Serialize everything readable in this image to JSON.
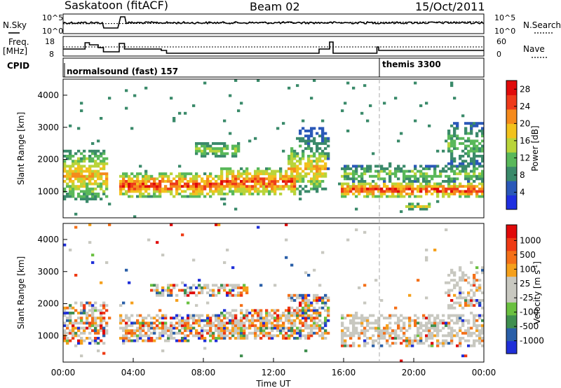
{
  "header": {
    "station": "Saskatoon (fitACF)",
    "beam": "Beam 02",
    "date": "15/Oct/2011"
  },
  "noise_panel": {
    "left_label": "N.Sky",
    "right_label": "N.Search",
    "left_ticks": [
      "10^5",
      "10^0"
    ],
    "right_ticks": [
      "10^5",
      "10^0"
    ]
  },
  "freq_panel": {
    "left_label_1": "Freq.",
    "left_label_2": "[MHz]",
    "right_label": "Nave",
    "left_ticks": [
      "18",
      "8"
    ],
    "right_ticks": [
      "60",
      "0"
    ]
  },
  "cpid_panel": {
    "label": "CPID",
    "modes": [
      {
        "name": "normalsound (fast) 157",
        "start_hour": 0
      },
      {
        "name": "themis 3300",
        "start_hour": 18.0
      }
    ]
  },
  "chart_data": [
    {
      "type": "heatmap",
      "name": "power",
      "ylabel": "Slant Range [km]",
      "xlim": [
        0,
        24
      ],
      "ylim": [
        180,
        4500
      ],
      "yticks": [
        1000,
        2000,
        3000,
        4000
      ],
      "colorbar": {
        "label": "Power [dB]",
        "ticks": [
          4,
          8,
          12,
          16,
          20,
          24,
          28
        ],
        "range": [
          0,
          30
        ],
        "colors": [
          "#1f2fe0",
          "#2a58b8",
          "#3a8a6a",
          "#59b85a",
          "#b9d43a",
          "#f2c21d",
          "#f58a1c",
          "#ee3a1a",
          "#e00a0a"
        ]
      },
      "echo_bands": [
        {
          "t0": 0.0,
          "t1": 2.6,
          "center": 1500,
          "half": 800,
          "level": 0.7
        },
        {
          "t0": 3.2,
          "t1": 9.0,
          "center": 1200,
          "half": 400,
          "level": 0.9
        },
        {
          "t0": 7.6,
          "t1": 10.0,
          "center": 2300,
          "half": 250,
          "level": 0.55
        },
        {
          "t0": 9.0,
          "t1": 13.2,
          "center": 1300,
          "half": 450,
          "level": 0.9
        },
        {
          "t0": 12.8,
          "t1": 15.0,
          "center": 1700,
          "half": 700,
          "level": 0.7
        },
        {
          "t0": 13.4,
          "t1": 15.2,
          "center": 2300,
          "half": 700,
          "level": 0.35
        },
        {
          "t0": 15.8,
          "t1": 24.0,
          "center": 1050,
          "half": 250,
          "level": 0.95
        },
        {
          "t0": 15.8,
          "t1": 24.0,
          "center": 1550,
          "half": 300,
          "level": 0.5
        },
        {
          "t0": 19.5,
          "t1": 21.0,
          "center": 550,
          "half": 120,
          "level": 0.6
        },
        {
          "t0": 22.0,
          "t1": 24.0,
          "center": 2500,
          "half": 700,
          "level": 0.45
        }
      ]
    },
    {
      "type": "heatmap",
      "name": "velocity",
      "xlabel": "Time UT",
      "ylabel": "Slant Range [km]",
      "xlim": [
        0,
        24
      ],
      "ylim": [
        180,
        4500
      ],
      "yticks": [
        1000,
        2000,
        3000,
        4000
      ],
      "xticks": [
        "00:00",
        "04:00",
        "08:00",
        "12:00",
        "16:00",
        "20:00",
        "00:00"
      ],
      "colorbar": {
        "label": "Velocity [m s^-1]",
        "ticks": [
          "1000",
          "500",
          "100",
          "25",
          "-25",
          "-100",
          "-500",
          "-1000"
        ],
        "colors": [
          "#1f2fd8",
          "#2a5fa8",
          "#3f8f4f",
          "#6ac040",
          "#c8c8c0",
          "#c8c8c0",
          "#f5a01c",
          "#f47018",
          "#ee3a14",
          "#e00a0a"
        ]
      },
      "echo_bands": [
        {
          "t0": 0.0,
          "t1": 2.6,
          "center": 1400,
          "half": 700,
          "level": 0.5
        },
        {
          "t0": 3.2,
          "t1": 9.0,
          "center": 1250,
          "half": 450,
          "level": 0.7
        },
        {
          "t0": 5.0,
          "t1": 10.5,
          "center": 2450,
          "half": 200,
          "level": 0.45
        },
        {
          "t0": 9.0,
          "t1": 13.2,
          "center": 1350,
          "half": 500,
          "level": 0.75
        },
        {
          "t0": 12.8,
          "t1": 15.2,
          "center": 1600,
          "half": 700,
          "level": 0.65
        },
        {
          "t0": 15.8,
          "t1": 24.0,
          "center": 1150,
          "half": 500,
          "level": 0.45
        },
        {
          "t0": 22.0,
          "t1": 24.0,
          "center": 2500,
          "half": 700,
          "level": 0.3
        }
      ]
    }
  ]
}
